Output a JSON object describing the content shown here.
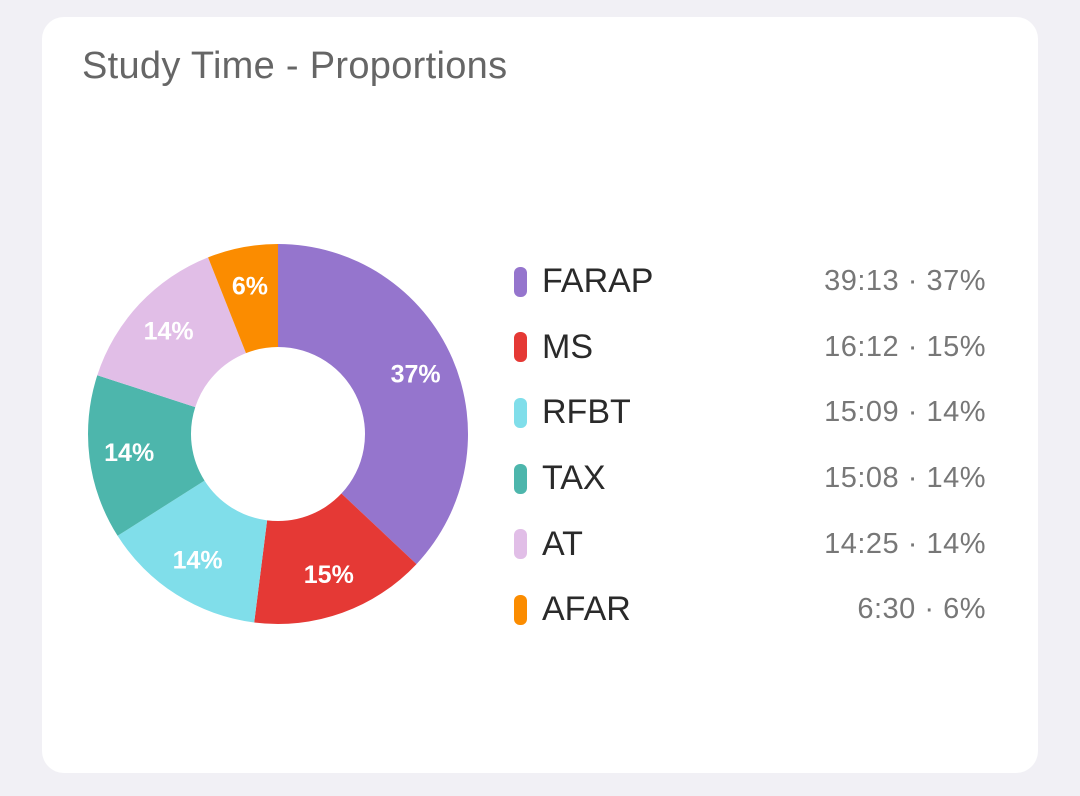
{
  "title": "Study Time - Proportions",
  "chart_data": {
    "type": "pie",
    "title": "Study Time - Proportions",
    "donut": true,
    "legend_position": "right",
    "categories": [
      "FARAP",
      "MS",
      "RFBT",
      "TAX",
      "AT",
      "AFAR"
    ],
    "durations": [
      "39:13",
      "16:12",
      "15:09",
      "15:08",
      "14:25",
      "6:30"
    ],
    "values": [
      37,
      15,
      14,
      14,
      14,
      6
    ],
    "slice_labels": [
      "37%",
      "15%",
      "14%",
      "14%",
      "14%",
      "6%"
    ],
    "legend_values": [
      "39:13 · 37%",
      "16:12 · 15%",
      "15:09 · 14%",
      "15:08 · 14%",
      "14:25 · 14%",
      "6:30 · 6%"
    ],
    "colors": [
      "#9575cd",
      "#e53935",
      "#80deea",
      "#4db6ac",
      "#e1bee7",
      "#fb8c00"
    ]
  }
}
